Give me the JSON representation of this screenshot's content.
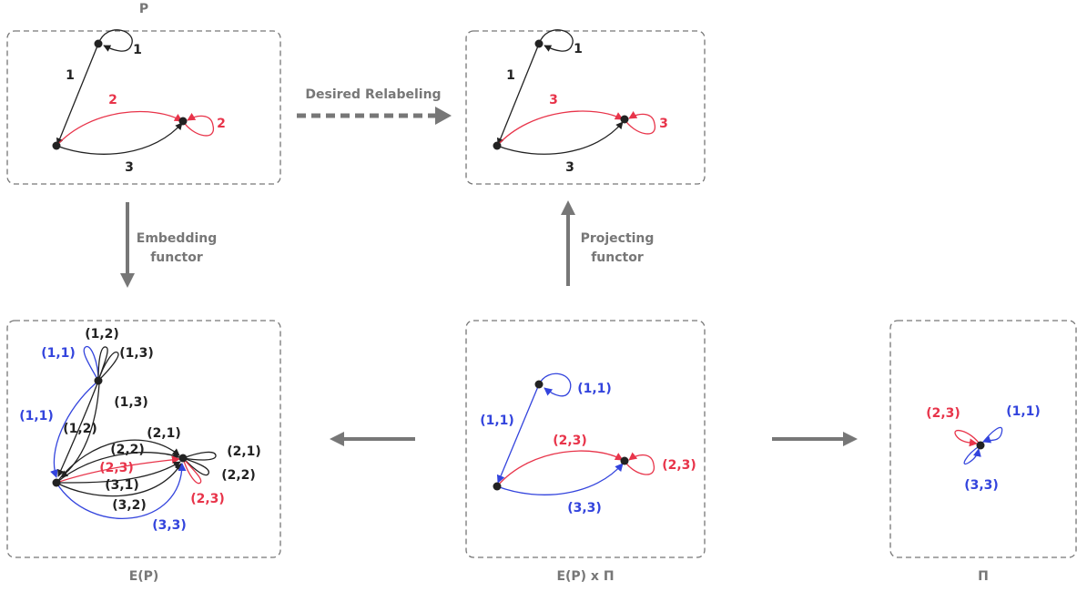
{
  "colors": {
    "black": "#222222",
    "red": "#e8344a",
    "blue": "#3344dd",
    "gray": "#777777"
  },
  "captions": {
    "p": "P",
    "ep": "E(P)",
    "eppi": "E(P) x Π",
    "pi": "Π"
  },
  "arrows": {
    "desired": "Desired Relabeling",
    "embed_1": "Embedding",
    "embed_2": "functor",
    "proj_1": "Projecting",
    "proj_2": "functor"
  },
  "p": {
    "l1_loop": "1",
    "l1": "1",
    "l2": "2",
    "l2_loop": "2",
    "l3": "3"
  },
  "relabeled": {
    "l1_loop": "1",
    "l1": "1",
    "l3_red": "3",
    "l3_loop": "3",
    "l3": "3"
  },
  "ep": {
    "l11_top": "(1,1)",
    "l12_top": "(1,2)",
    "l13_top": "(1,3)",
    "l13": "(1,3)",
    "l11_left": "(1,1)",
    "l12": "(1,2)",
    "l21": "(2,1)",
    "l22": "(2,2)",
    "l23": "(2,3)",
    "l21_right": "(2,1)",
    "l22_right": "(2,2)",
    "l23_right": "(2,3)",
    "l31": "(3,1)",
    "l32": "(3,2)",
    "l33": "(3,3)"
  },
  "eppi": {
    "l11_loop": "(1,1)",
    "l11": "(1,1)",
    "l23": "(2,3)",
    "l23_loop": "(2,3)",
    "l33": "(3,3)"
  },
  "pi": {
    "l23": "(2,3)",
    "l11": "(1,1)",
    "l33": "(3,3)"
  }
}
